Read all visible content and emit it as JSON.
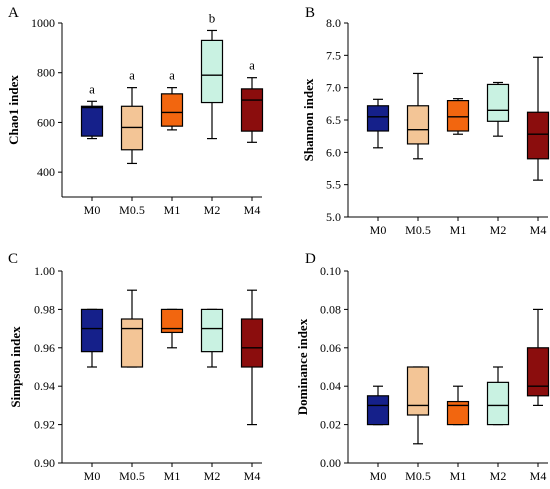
{
  "chart_data": [
    {
      "type": "boxplot",
      "panel": "A",
      "title": "",
      "ylabel": "Chao1 index",
      "categories": [
        "M0",
        "M0.5",
        "M1",
        "M2",
        "M4"
      ],
      "ylim": [
        300,
        1000
      ],
      "yticks": [
        400,
        600,
        800,
        1000
      ],
      "ytick_labels": [
        "400",
        "600",
        "800",
        "1000"
      ],
      "boxes": [
        {
          "min": 535,
          "q1": 545,
          "median": 660,
          "q3": 665,
          "max": 685
        },
        {
          "min": 435,
          "q1": 490,
          "median": 580,
          "q3": 665,
          "max": 740
        },
        {
          "min": 570,
          "q1": 585,
          "median": 640,
          "q3": 715,
          "max": 740
        },
        {
          "min": 535,
          "q1": 680,
          "median": 790,
          "q3": 930,
          "max": 970
        },
        {
          "min": 520,
          "q1": 565,
          "median": 690,
          "q3": 735,
          "max": 780
        }
      ],
      "significance": [
        "a",
        "a",
        "a",
        "b",
        "a"
      ]
    },
    {
      "type": "boxplot",
      "panel": "B",
      "title": "",
      "ylabel": "Shannon index",
      "categories": [
        "M0",
        "M0.5",
        "M1",
        "M2",
        "M4"
      ],
      "ylim": [
        5.0,
        8.0
      ],
      "yticks": [
        5.0,
        5.5,
        6.0,
        6.5,
        7.0,
        7.5,
        8.0
      ],
      "ytick_labels": [
        "5.0",
        "5.5",
        "6.0",
        "6.5",
        "7.0",
        "7.5",
        "8.0"
      ],
      "boxes": [
        {
          "min": 6.07,
          "q1": 6.33,
          "median": 6.55,
          "q3": 6.72,
          "max": 6.82
        },
        {
          "min": 5.9,
          "q1": 6.13,
          "median": 6.35,
          "q3": 6.72,
          "max": 7.22
        },
        {
          "min": 6.28,
          "q1": 6.33,
          "median": 6.55,
          "q3": 6.8,
          "max": 6.83
        },
        {
          "min": 6.25,
          "q1": 6.48,
          "median": 6.65,
          "q3": 7.05,
          "max": 7.08
        },
        {
          "min": 5.57,
          "q1": 5.9,
          "median": 6.28,
          "q3": 6.62,
          "max": 7.47
        }
      ],
      "significance": []
    },
    {
      "type": "boxplot",
      "panel": "C",
      "title": "",
      "ylabel": "Simpson index",
      "categories": [
        "M0",
        "M0.5",
        "M1",
        "M2",
        "M4"
      ],
      "ylim": [
        0.9,
        1.0
      ],
      "yticks": [
        0.9,
        0.92,
        0.94,
        0.96,
        0.98,
        1.0
      ],
      "ytick_labels": [
        "0.90",
        "0.92",
        "0.94",
        "0.96",
        "0.98",
        "1.00"
      ],
      "boxes": [
        {
          "min": 0.95,
          "q1": 0.958,
          "median": 0.97,
          "q3": 0.98,
          "max": 0.98
        },
        {
          "min": 0.95,
          "q1": 0.95,
          "median": 0.97,
          "q3": 0.975,
          "max": 0.99
        },
        {
          "min": 0.96,
          "q1": 0.968,
          "median": 0.97,
          "q3": 0.98,
          "max": 0.98
        },
        {
          "min": 0.95,
          "q1": 0.958,
          "median": 0.97,
          "q3": 0.98,
          "max": 0.98
        },
        {
          "min": 0.92,
          "q1": 0.95,
          "median": 0.96,
          "q3": 0.975,
          "max": 0.99
        }
      ],
      "significance": []
    },
    {
      "type": "boxplot",
      "panel": "D",
      "title": "",
      "ylabel": "Dominance index",
      "categories": [
        "M0",
        "M0.5",
        "M1",
        "M2",
        "M4"
      ],
      "ylim": [
        0.0,
        0.1
      ],
      "yticks": [
        0.0,
        0.02,
        0.04,
        0.06,
        0.08,
        0.1
      ],
      "ytick_labels": [
        "0.00",
        "0.02",
        "0.04",
        "0.06",
        "0.08",
        "0.10"
      ],
      "boxes": [
        {
          "min": 0.02,
          "q1": 0.02,
          "median": 0.03,
          "q3": 0.035,
          "max": 0.04
        },
        {
          "min": 0.01,
          "q1": 0.025,
          "median": 0.03,
          "q3": 0.05,
          "max": 0.05
        },
        {
          "min": 0.02,
          "q1": 0.02,
          "median": 0.03,
          "q3": 0.032,
          "max": 0.04
        },
        {
          "min": 0.02,
          "q1": 0.02,
          "median": 0.03,
          "q3": 0.042,
          "max": 0.05
        },
        {
          "min": 0.03,
          "q1": 0.035,
          "median": 0.04,
          "q3": 0.06,
          "max": 0.08
        }
      ],
      "significance": []
    }
  ],
  "colors": {
    "M0": "#15208a",
    "M0.5": "#f3c596",
    "M1": "#f2660f",
    "M2": "#c9f2e2",
    "M4": "#8b0d0d"
  }
}
